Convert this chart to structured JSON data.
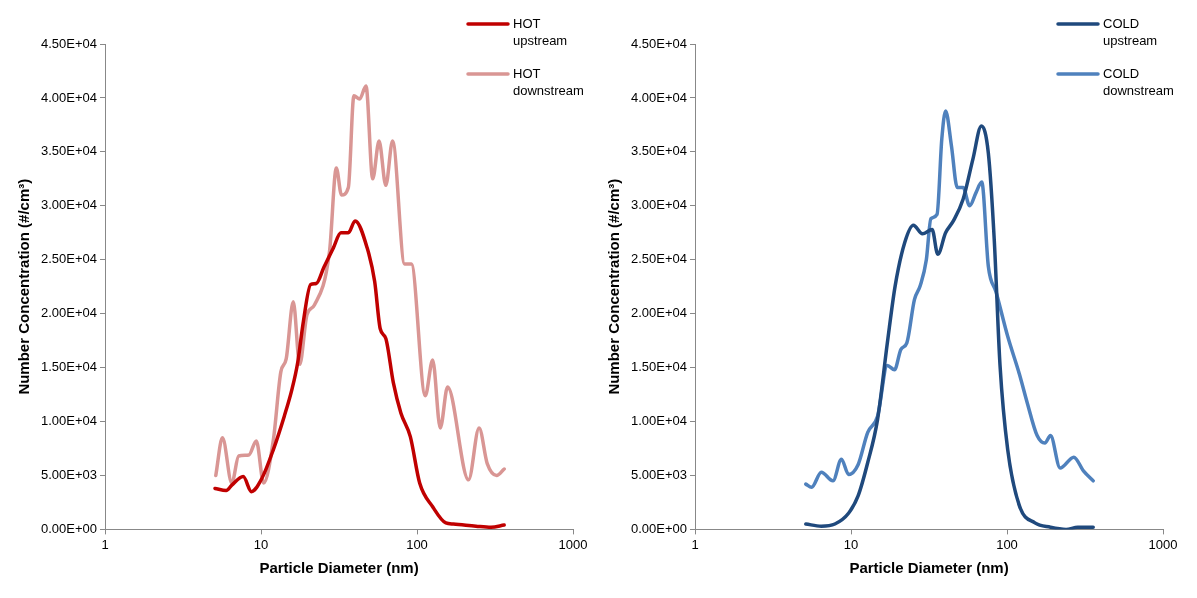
{
  "chart_data": [
    {
      "type": "line",
      "xlabel": "Particle Diameter (nm)",
      "ylabel": "Number Concentration (#/cm³)",
      "log": "x",
      "grid": false,
      "legend": "top right",
      "marker": "none",
      "line_style": "solid",
      "xlim": [
        1,
        1000
      ],
      "xticks": [
        1,
        10,
        100,
        1000
      ],
      "ylim": [
        0,
        45000
      ],
      "yticks": [
        {
          "value": 0,
          "label": "0.00E+00"
        },
        {
          "value": 5000,
          "label": "5.00E+03"
        },
        {
          "value": 10000,
          "label": "1.00E+04"
        },
        {
          "value": 15000,
          "label": "1.50E+04"
        },
        {
          "value": 20000,
          "label": "2.00E+04"
        },
        {
          "value": 25000,
          "label": "2.50E+04"
        },
        {
          "value": 30000,
          "label": "3.00E+04"
        },
        {
          "value": 35000,
          "label": "3.50E+04"
        },
        {
          "value": 40000,
          "label": "4.00E+04"
        },
        {
          "value": 45000,
          "label": "4.50E+04"
        }
      ],
      "series": [
        {
          "name": "HOT upstream",
          "color": "#c00000",
          "x": [
            5.07,
            5.98,
            6.5,
            7.69,
            8.68,
            10.1,
            12.0,
            14.1,
            15.8,
            17.2,
            18.7,
            20.8,
            22.6,
            25.3,
            29.1,
            32.5,
            36.3,
            40.1,
            47.9,
            53.5,
            58.1,
            63.1,
            70.5,
            78.8,
            90.6,
            104,
            126,
            153,
            171,
            239,
            298,
            362
          ],
          "values": [
            3800,
            3600,
            4100,
            4900,
            3500,
            4700,
            7400,
            10500,
            13000,
            15500,
            19300,
            22700,
            22800,
            24300,
            26100,
            27500,
            27500,
            28600,
            26100,
            23000,
            18600,
            17700,
            13600,
            10800,
            8600,
            4300,
            2100,
            600,
            500,
            300,
            200,
            400
          ]
        },
        {
          "name": "HOT downstream",
          "color": "#d99694",
          "x": [
            5.13,
            5.66,
            6.5,
            7.19,
            8.36,
            9.33,
            10.4,
            12.0,
            13.4,
            14.5,
            16.1,
            17.7,
            19.7,
            22.0,
            27.5,
            30.4,
            32.8,
            36.3,
            39.4,
            42.9,
            47.1,
            52.0,
            57.1,
            63.1,
            69.7,
            83.3,
            92.0,
            113,
            126,
            141,
            157,
            214,
            250,
            282,
            324,
            362
          ],
          "values": [
            5000,
            8500,
            4300,
            6800,
            6900,
            8200,
            4300,
            8300,
            14600,
            15800,
            21100,
            15300,
            19900,
            20800,
            25800,
            33500,
            31000,
            31700,
            40200,
            39900,
            41100,
            32500,
            36000,
            31900,
            36000,
            24600,
            24600,
            12400,
            15700,
            9400,
            13200,
            4600,
            9400,
            6100,
            5000,
            5600
          ]
        }
      ]
    },
    {
      "type": "line",
      "xlabel": "Particle Diameter (nm)",
      "ylabel": "Number Concentration (#/cm³)",
      "log": "x",
      "grid": false,
      "legend": "top right",
      "marker": "none",
      "line_style": "solid",
      "xlim": [
        1,
        1000
      ],
      "xticks": [
        1,
        10,
        100,
        1000
      ],
      "ylim": [
        0,
        45000
      ],
      "yticks": [
        {
          "value": 0,
          "label": "0.00E+00"
        },
        {
          "value": 5000,
          "label": "5.00E+03"
        },
        {
          "value": 10000,
          "label": "1.00E+04"
        },
        {
          "value": 15000,
          "label": "1.50E+04"
        },
        {
          "value": 20000,
          "label": "2.00E+04"
        },
        {
          "value": 25000,
          "label": "2.50E+04"
        },
        {
          "value": 30000,
          "label": "3.00E+04"
        },
        {
          "value": 35000,
          "label": "3.50E+04"
        },
        {
          "value": 40000,
          "label": "4.00E+04"
        },
        {
          "value": 45000,
          "label": "4.50E+04"
        }
      ],
      "series": [
        {
          "name": "COLD upstream",
          "color": "#1f497d",
          "x": [
            5.13,
            6.45,
            7.88,
            9.64,
            11.1,
            12.8,
            14.8,
            17.1,
            19.2,
            22.1,
            25.1,
            28.7,
            33.1,
            36.0,
            40.4,
            45.3,
            52.3,
            60.4,
            68.5,
            75.9,
            82.8,
            90.2,
            101,
            120,
            151,
            190,
            239,
            284,
            357
          ],
          "values": [
            500,
            300,
            500,
            1500,
            3100,
            6200,
            10200,
            17300,
            22600,
            26600,
            28200,
            27400,
            27800,
            25500,
            27500,
            28600,
            30600,
            34300,
            37400,
            34900,
            26900,
            15200,
            7400,
            2200,
            600,
            200,
            0,
            200,
            200
          ]
        },
        {
          "name": "COLD downstream",
          "color": "#4f81bd",
          "x": [
            5.13,
            5.59,
            6.45,
            7.66,
            8.68,
            9.64,
            11.1,
            12.8,
            14.8,
            17.1,
            19.0,
            20.9,
            22.8,
            25.5,
            27.8,
            30.4,
            32.5,
            35.6,
            38.2,
            40.4,
            44.0,
            48.0,
            52.3,
            57.6,
            63.2,
            68.9,
            75.9,
            85.1,
            101,
            120,
            135,
            156,
            175,
            190,
            219,
            268,
            310,
            357
          ],
          "values": [
            4200,
            3900,
            5300,
            4500,
            6500,
            5100,
            6000,
            9000,
            10500,
            15200,
            14800,
            16700,
            17300,
            21300,
            22600,
            25000,
            28800,
            29200,
            36200,
            38800,
            35600,
            31700,
            31700,
            30000,
            31200,
            32200,
            24400,
            22000,
            17900,
            14400,
            11700,
            8700,
            8000,
            8700,
            5700,
            6700,
            5400,
            4500
          ]
        }
      ]
    }
  ]
}
